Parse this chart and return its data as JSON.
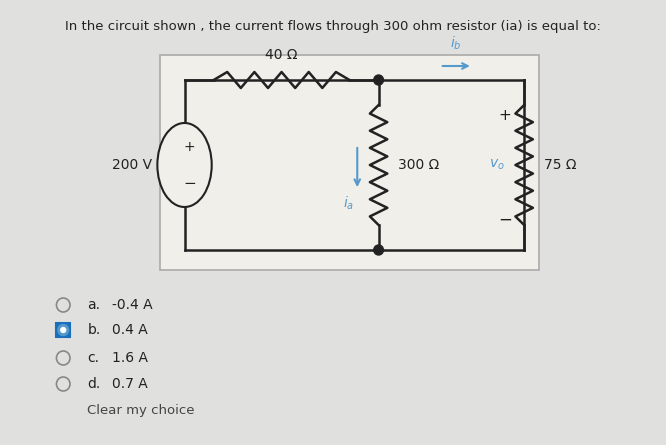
{
  "title": "In the circuit shown , the current flows through 300 ohm resistor (ia) is equal to:",
  "background_color": "#e0e0df",
  "circuit_bg": "#f0efea",
  "choices": [
    {
      "label": "a.",
      "text": "-0.4 A",
      "selected": false
    },
    {
      "label": "b.",
      "text": "0.4 A",
      "selected": true
    },
    {
      "label": "c.",
      "text": "1.6 A",
      "selected": false
    },
    {
      "label": "d.",
      "text": "0.7 A",
      "selected": false
    }
  ],
  "clear_text": "Clear my choice",
  "voltage_source": "200 V",
  "resistor_top": "40 Ω",
  "resistor_mid": "300 Ω",
  "resistor_right": "75 Ω",
  "selected_color": "#1a6fbd",
  "line_color": "#222222",
  "blue_color": "#5599cc",
  "text_color": "#222222",
  "circuit_border": "#aaaaaa"
}
